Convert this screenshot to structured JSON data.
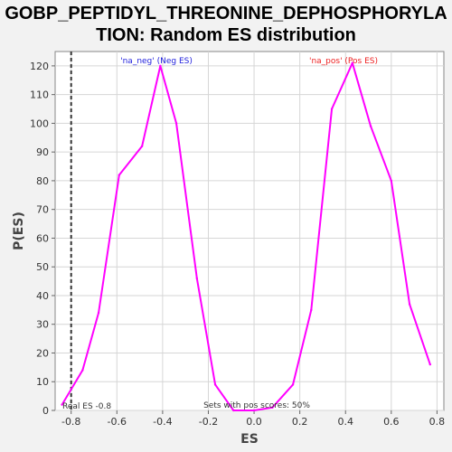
{
  "chart_data": {
    "type": "line",
    "title_line_1": "GOBP_PEPTIDYL_THREONINE_DEPHOSPHORYLA",
    "title_line_2": "TION: Random ES distribution",
    "xlabel": "ES",
    "ylabel": "P(ES)",
    "xlim": [
      -0.87,
      0.83
    ],
    "ylim": [
      0,
      125
    ],
    "x_ticks": [
      -0.8,
      -0.6,
      -0.4,
      -0.2,
      0.0,
      0.2,
      0.4,
      0.6,
      0.8
    ],
    "x_tick_labels": [
      "-0.8",
      "-0.6",
      "-0.4",
      "-0.2",
      "0.0",
      "0.2",
      "0.4",
      "0.6",
      "0.8"
    ],
    "y_ticks": [
      0,
      10,
      20,
      30,
      40,
      50,
      60,
      70,
      80,
      90,
      100,
      110,
      120
    ],
    "grid": true,
    "series": [
      {
        "color": "#ff00ff",
        "x": [
          -0.84,
          -0.75,
          -0.68,
          -0.59,
          -0.49,
          -0.41,
          -0.34,
          -0.25,
          -0.17,
          -0.09,
          0.0,
          0.08,
          0.17,
          0.25,
          0.34,
          0.43,
          0.51,
          0.6,
          0.68,
          0.77
        ],
        "y": [
          2,
          14,
          34,
          82,
          92,
          120,
          100,
          46,
          9,
          0,
          0,
          1,
          9,
          35,
          105,
          121,
          99,
          80,
          37,
          16
        ]
      }
    ],
    "real_es": -0.8,
    "annotations": {
      "neg_label": "'na_neg' (Neg ES)",
      "neg_color": "#2222dd",
      "pos_label": "'na_pos' (Pos ES)",
      "pos_color": "#ee2222",
      "real_es_label": "Real ES -0.8",
      "sets_label": "Sets with pos scores: 50%"
    }
  }
}
